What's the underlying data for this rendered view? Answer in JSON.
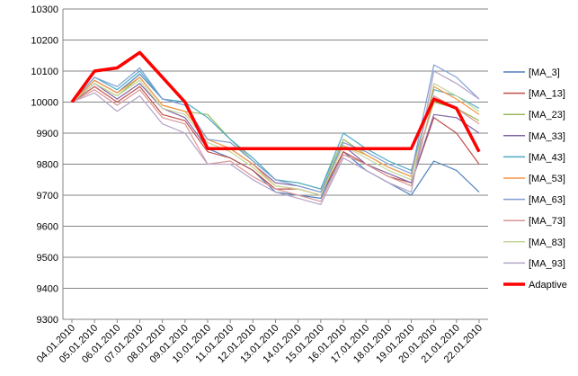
{
  "chart_data": {
    "type": "line",
    "title": "",
    "xlabel": "",
    "ylabel": "",
    "ylim": [
      9300,
      10300
    ],
    "y_ticks": [
      9300,
      9400,
      9500,
      9600,
      9700,
      9800,
      9900,
      10000,
      10100,
      10200,
      10300
    ],
    "categories": [
      "04.01.2010",
      "05.01.2010",
      "06.01.2010",
      "07.01.2010",
      "08.01.2010",
      "09.01.2010",
      "10.01.2010",
      "11.01.2010",
      "12.01.2010",
      "13.01.2010",
      "14.01.2010",
      "15.01.2010",
      "16.01.2010",
      "17.01.2010",
      "18.01.2010",
      "19.01.2010",
      "20.01.2010",
      "21.01.2010",
      "22.01.2010"
    ],
    "grid": "horizontal",
    "legend_position": "right",
    "series": [
      {
        "name": "[MA_3]",
        "color": "#4f81bd",
        "values": [
          10000,
          10070,
          10030,
          10090,
          10010,
          10000,
          9850,
          9820,
          9780,
          9710,
          9700,
          9690,
          9840,
          9780,
          9740,
          9700,
          9810,
          9780,
          9710
        ]
      },
      {
        "name": "[MA_13]",
        "color": "#c0504d",
        "values": [
          10000,
          10050,
          10000,
          10050,
          9960,
          9940,
          9840,
          9820,
          9780,
          9720,
          9720,
          9700,
          9840,
          9800,
          9760,
          9740,
          9950,
          9900,
          9800
        ]
      },
      {
        "name": "[MA_23]",
        "color": "#9bbb59",
        "values": [
          10000,
          10060,
          10020,
          10080,
          9990,
          9970,
          9960,
          9880,
          9810,
          9750,
          9740,
          9720,
          9880,
          9830,
          9790,
          9760,
          10000,
          9980,
          9940
        ]
      },
      {
        "name": "[MA_33]",
        "color": "#8064a2",
        "values": [
          10000,
          10060,
          10010,
          10060,
          9980,
          9950,
          9850,
          9850,
          9800,
          9740,
          9730,
          9710,
          9860,
          9800,
          9770,
          9740,
          9960,
          9950,
          9900
        ]
      },
      {
        "name": "[MA_43]",
        "color": "#4bacc6",
        "values": [
          10000,
          10080,
          10040,
          10100,
          10010,
          10000,
          9950,
          9880,
          9820,
          9750,
          9740,
          9720,
          9900,
          9850,
          9810,
          9780,
          10040,
          10020,
          9980
        ]
      },
      {
        "name": "[MA_53]",
        "color": "#f79646",
        "values": [
          10000,
          10070,
          10030,
          10080,
          9990,
          9970,
          9880,
          9850,
          9800,
          9730,
          9720,
          9700,
          9860,
          9830,
          9790,
          9760,
          10050,
          10010,
          9960
        ]
      },
      {
        "name": "[MA_63]",
        "color": "#7f9fd4",
        "values": [
          10000,
          10080,
          10050,
          10110,
          10010,
          9990,
          9880,
          9870,
          9810,
          9750,
          9730,
          9710,
          9870,
          9840,
          9800,
          9770,
          10120,
          10080,
          10010
        ]
      },
      {
        "name": "[MA_73]",
        "color": "#d99694",
        "values": [
          10000,
          10040,
          9990,
          10040,
          9950,
          9930,
          9800,
          9810,
          9760,
          9720,
          9700,
          9680,
          9830,
          9800,
          9760,
          9730,
          10020,
          9980,
          9930
        ]
      },
      {
        "name": "[MA_83]",
        "color": "#c4d79b",
        "values": [
          10000,
          10060,
          10020,
          10070,
          9980,
          9960,
          9870,
          9840,
          9790,
          9730,
          9720,
          9700,
          9860,
          9820,
          9780,
          9750,
          10060,
          10020,
          9970
        ]
      },
      {
        "name": "[MA_93]",
        "color": "#b3a2c7",
        "values": [
          10000,
          10030,
          9970,
          10020,
          9930,
          9900,
          9800,
          9800,
          9750,
          9710,
          9690,
          9670,
          9820,
          9780,
          9740,
          9710,
          10100,
          10060,
          10010
        ]
      },
      {
        "name": "Adaptive",
        "color": "#ff0000",
        "values": [
          10000,
          10100,
          10110,
          10160,
          10080,
          10000,
          9850,
          9850,
          9850,
          9850,
          9850,
          9850,
          9850,
          9850,
          9850,
          9850,
          10010,
          9980,
          9840
        ]
      }
    ]
  }
}
